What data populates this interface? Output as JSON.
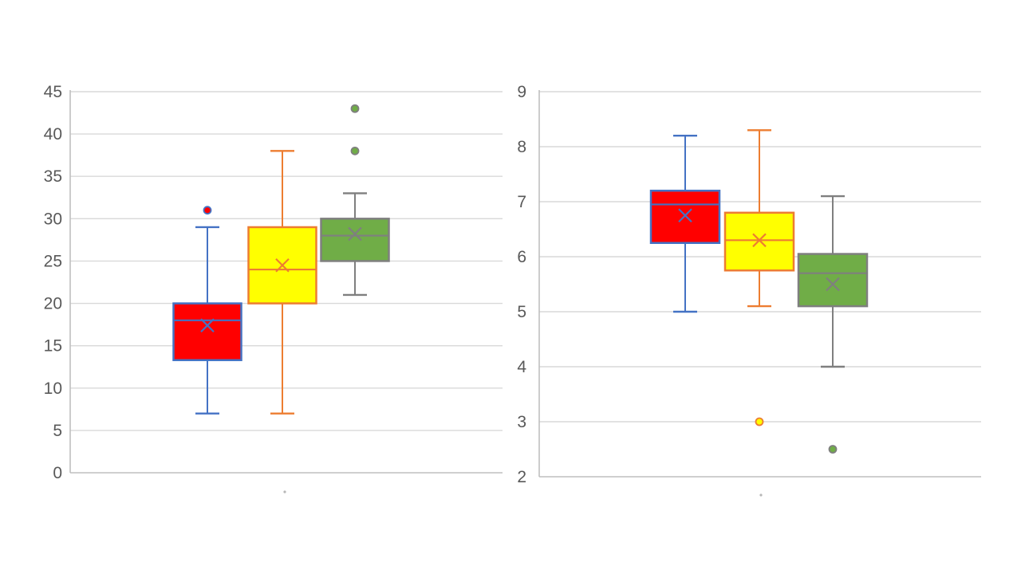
{
  "page": {
    "background": "#ffffff",
    "title": "",
    "description": "two box-and-whisker plots side by side"
  },
  "colors": {
    "gridline": "#d9d9d9",
    "axis_line": "#bfbfbf",
    "tick_label": "#595959",
    "series_red_fill": "#ff0000",
    "series_red_stroke": "#4472c4",
    "series_yellow_fill": "#ffff00",
    "series_yellow_stroke": "#ed7d31",
    "series_green_fill": "#70ad47",
    "series_green_stroke": "#7f7f7f"
  },
  "chart_data": [
    {
      "type": "box",
      "title": "",
      "xlabel": "",
      "ylabel": "",
      "ylim": [
        0,
        45
      ],
      "ytick_step": 5,
      "ytick_labels": [
        "0",
        "5",
        "10",
        "15",
        "20",
        "25",
        "30",
        "35",
        "40",
        "45"
      ],
      "grid": true,
      "legend": "none",
      "series": [
        {
          "name": "red",
          "fill": "#ff0000",
          "stroke": "#4472c4",
          "whisker_min": 7,
          "q1": 13.3,
          "median": 18,
          "q3": 20,
          "whisker_max": 29,
          "mean": 17.4,
          "outliers": [
            31
          ]
        },
        {
          "name": "yellow",
          "fill": "#ffff00",
          "stroke": "#ed7d31",
          "whisker_min": 7,
          "q1": 20,
          "median": 24,
          "q3": 29,
          "whisker_max": 38,
          "mean": 24.5,
          "outliers": []
        },
        {
          "name": "green",
          "fill": "#70ad47",
          "stroke": "#7f7f7f",
          "whisker_min": 21,
          "q1": 25,
          "median": 28,
          "q3": 30,
          "whisker_max": 33,
          "mean": 28.2,
          "outliers": [
            38,
            43
          ]
        }
      ]
    },
    {
      "type": "box",
      "title": "",
      "xlabel": "",
      "ylabel": "",
      "ylim": [
        2,
        9
      ],
      "ytick_step": 1,
      "ytick_labels": [
        "2",
        "3",
        "4",
        "5",
        "6",
        "7",
        "8",
        "9"
      ],
      "grid": true,
      "legend": "none",
      "series": [
        {
          "name": "red",
          "fill": "#ff0000",
          "stroke": "#4472c4",
          "whisker_min": 5.0,
          "q1": 6.25,
          "median": 6.95,
          "q3": 7.2,
          "whisker_max": 8.2,
          "mean": 6.75,
          "outliers": []
        },
        {
          "name": "yellow",
          "fill": "#ffff00",
          "stroke": "#ed7d31",
          "whisker_min": 5.1,
          "q1": 5.75,
          "median": 6.3,
          "q3": 6.8,
          "whisker_max": 8.3,
          "mean": 6.3,
          "outliers": [
            3.0
          ]
        },
        {
          "name": "green",
          "fill": "#70ad47",
          "stroke": "#7f7f7f",
          "whisker_min": 4.0,
          "q1": 5.1,
          "median": 5.7,
          "q3": 6.05,
          "whisker_max": 7.1,
          "mean": 5.5,
          "outliers": [
            2.5
          ]
        }
      ]
    }
  ]
}
